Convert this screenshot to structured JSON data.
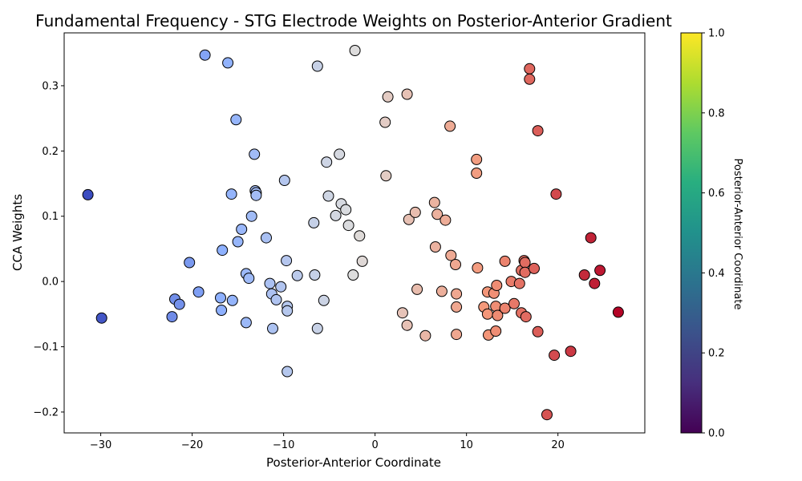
{
  "chart_data": {
    "type": "scatter",
    "title": "Fundamental Frequency - STG Electrode Weights on Posterior-Anterior Gradient",
    "xlabel": "Posterior-Anterior Coordinate",
    "ylabel": "CCA Weights",
    "xlim": [
      -34.0,
      29.5
    ],
    "ylim": [
      -0.232,
      0.381
    ],
    "xticks": [
      -30,
      -20,
      -10,
      0,
      10,
      20
    ],
    "yticks": [
      -0.2,
      -0.1,
      0.0,
      0.1,
      0.2,
      0.3
    ],
    "xtick_labels": [
      "−30",
      "−20",
      "−10",
      "0",
      "10",
      "20"
    ],
    "ytick_labels": [
      "−0.2",
      "−0.1",
      "0.0",
      "0.1",
      "0.2",
      "0.3"
    ],
    "grid": false,
    "colorbar": {
      "label": "Posterior-Anterior Coordinate",
      "range": [
        0.0,
        1.0
      ],
      "colormap": "viridis",
      "ticks": [
        0.0,
        0.2,
        0.4,
        0.6,
        0.8,
        1.0
      ],
      "tick_labels": [
        "0.0",
        "0.2",
        "0.4",
        "0.6",
        "0.8",
        "1.0"
      ]
    },
    "point_colormap": "coolwarm",
    "point_color_range": [
      -31.4,
      26.6
    ],
    "points": [
      {
        "x": -31.4,
        "y": 0.133
      },
      {
        "x": -29.9,
        "y": -0.056
      },
      {
        "x": -22.2,
        "y": -0.054
      },
      {
        "x": -21.9,
        "y": -0.027
      },
      {
        "x": -21.4,
        "y": -0.035
      },
      {
        "x": -20.3,
        "y": 0.029
      },
      {
        "x": -19.3,
        "y": -0.016
      },
      {
        "x": -18.6,
        "y": 0.347
      },
      {
        "x": -16.9,
        "y": -0.025
      },
      {
        "x": -16.8,
        "y": -0.044
      },
      {
        "x": -16.7,
        "y": 0.048
      },
      {
        "x": -16.1,
        "y": 0.335
      },
      {
        "x": -15.7,
        "y": 0.134
      },
      {
        "x": -15.6,
        "y": -0.029
      },
      {
        "x": -15.2,
        "y": 0.248
      },
      {
        "x": -15.0,
        "y": 0.061
      },
      {
        "x": -14.6,
        "y": 0.08
      },
      {
        "x": -14.1,
        "y": 0.012
      },
      {
        "x": -14.1,
        "y": -0.063
      },
      {
        "x": -13.8,
        "y": 0.005
      },
      {
        "x": -13.5,
        "y": 0.1
      },
      {
        "x": -13.2,
        "y": 0.195
      },
      {
        "x": -13.1,
        "y": 0.139
      },
      {
        "x": -13.0,
        "y": 0.136
      },
      {
        "x": -13.0,
        "y": 0.132
      },
      {
        "x": -11.9,
        "y": 0.067
      },
      {
        "x": -11.5,
        "y": -0.003
      },
      {
        "x": -11.3,
        "y": -0.019
      },
      {
        "x": -11.2,
        "y": -0.072
      },
      {
        "x": -10.8,
        "y": -0.028
      },
      {
        "x": -10.3,
        "y": -0.008
      },
      {
        "x": -9.9,
        "y": 0.155
      },
      {
        "x": -9.7,
        "y": 0.032
      },
      {
        "x": -9.6,
        "y": -0.038
      },
      {
        "x": -9.6,
        "y": -0.045
      },
      {
        "x": -9.6,
        "y": -0.138
      },
      {
        "x": -8.5,
        "y": 0.009
      },
      {
        "x": -6.7,
        "y": 0.09
      },
      {
        "x": -6.6,
        "y": 0.01
      },
      {
        "x": -6.3,
        "y": 0.33
      },
      {
        "x": -6.3,
        "y": -0.072
      },
      {
        "x": -5.6,
        "y": -0.029
      },
      {
        "x": -5.3,
        "y": 0.183
      },
      {
        "x": -5.1,
        "y": 0.131
      },
      {
        "x": -4.3,
        "y": 0.101
      },
      {
        "x": -3.9,
        "y": 0.195
      },
      {
        "x": -3.7,
        "y": 0.119
      },
      {
        "x": -3.2,
        "y": 0.11
      },
      {
        "x": -2.9,
        "y": 0.086
      },
      {
        "x": -2.4,
        "y": 0.01
      },
      {
        "x": -2.2,
        "y": 0.354
      },
      {
        "x": -1.7,
        "y": 0.07
      },
      {
        "x": -1.4,
        "y": 0.031
      },
      {
        "x": 1.1,
        "y": 0.244
      },
      {
        "x": 1.2,
        "y": 0.162
      },
      {
        "x": 1.4,
        "y": 0.283
      },
      {
        "x": 3.0,
        "y": -0.048
      },
      {
        "x": 3.5,
        "y": 0.287
      },
      {
        "x": 3.5,
        "y": -0.067
      },
      {
        "x": 3.7,
        "y": 0.095
      },
      {
        "x": 4.4,
        "y": 0.106
      },
      {
        "x": 4.6,
        "y": -0.012
      },
      {
        "x": 5.5,
        "y": -0.083
      },
      {
        "x": 6.5,
        "y": 0.121
      },
      {
        "x": 6.6,
        "y": 0.053
      },
      {
        "x": 6.8,
        "y": 0.103
      },
      {
        "x": 7.3,
        "y": -0.015
      },
      {
        "x": 7.7,
        "y": 0.094
      },
      {
        "x": 8.2,
        "y": 0.238
      },
      {
        "x": 8.3,
        "y": 0.04
      },
      {
        "x": 8.8,
        "y": 0.026
      },
      {
        "x": 8.9,
        "y": -0.019
      },
      {
        "x": 8.9,
        "y": -0.039
      },
      {
        "x": 8.9,
        "y": -0.081
      },
      {
        "x": 11.1,
        "y": 0.187
      },
      {
        "x": 11.1,
        "y": 0.166
      },
      {
        "x": 11.2,
        "y": 0.021
      },
      {
        "x": 11.9,
        "y": -0.039
      },
      {
        "x": 12.3,
        "y": -0.016
      },
      {
        "x": 12.3,
        "y": -0.05
      },
      {
        "x": 12.4,
        "y": -0.082
      },
      {
        "x": 13.0,
        "y": -0.018
      },
      {
        "x": 13.2,
        "y": -0.038
      },
      {
        "x": 13.2,
        "y": -0.076
      },
      {
        "x": 13.3,
        "y": -0.006
      },
      {
        "x": 13.4,
        "y": -0.052
      },
      {
        "x": 14.2,
        "y": 0.031
      },
      {
        "x": 14.2,
        "y": -0.041
      },
      {
        "x": 14.9,
        "y": 0.0
      },
      {
        "x": 15.2,
        "y": -0.034
      },
      {
        "x": 15.8,
        "y": -0.003
      },
      {
        "x": 16.0,
        "y": 0.017
      },
      {
        "x": 16.0,
        "y": -0.048
      },
      {
        "x": 16.3,
        "y": 0.032
      },
      {
        "x": 16.4,
        "y": 0.029
      },
      {
        "x": 16.4,
        "y": 0.014
      },
      {
        "x": 16.5,
        "y": -0.054
      },
      {
        "x": 16.9,
        "y": 0.326
      },
      {
        "x": 16.9,
        "y": 0.31
      },
      {
        "x": 17.4,
        "y": 0.02
      },
      {
        "x": 17.8,
        "y": 0.231
      },
      {
        "x": 17.8,
        "y": -0.077
      },
      {
        "x": 18.8,
        "y": -0.204
      },
      {
        "x": 19.6,
        "y": -0.113
      },
      {
        "x": 19.8,
        "y": 0.134
      },
      {
        "x": 21.4,
        "y": -0.107
      },
      {
        "x": 22.9,
        "y": 0.01
      },
      {
        "x": 23.6,
        "y": 0.067
      },
      {
        "x": 24.0,
        "y": -0.003
      },
      {
        "x": 24.6,
        "y": 0.017
      },
      {
        "x": 26.6,
        "y": -0.047
      }
    ]
  }
}
